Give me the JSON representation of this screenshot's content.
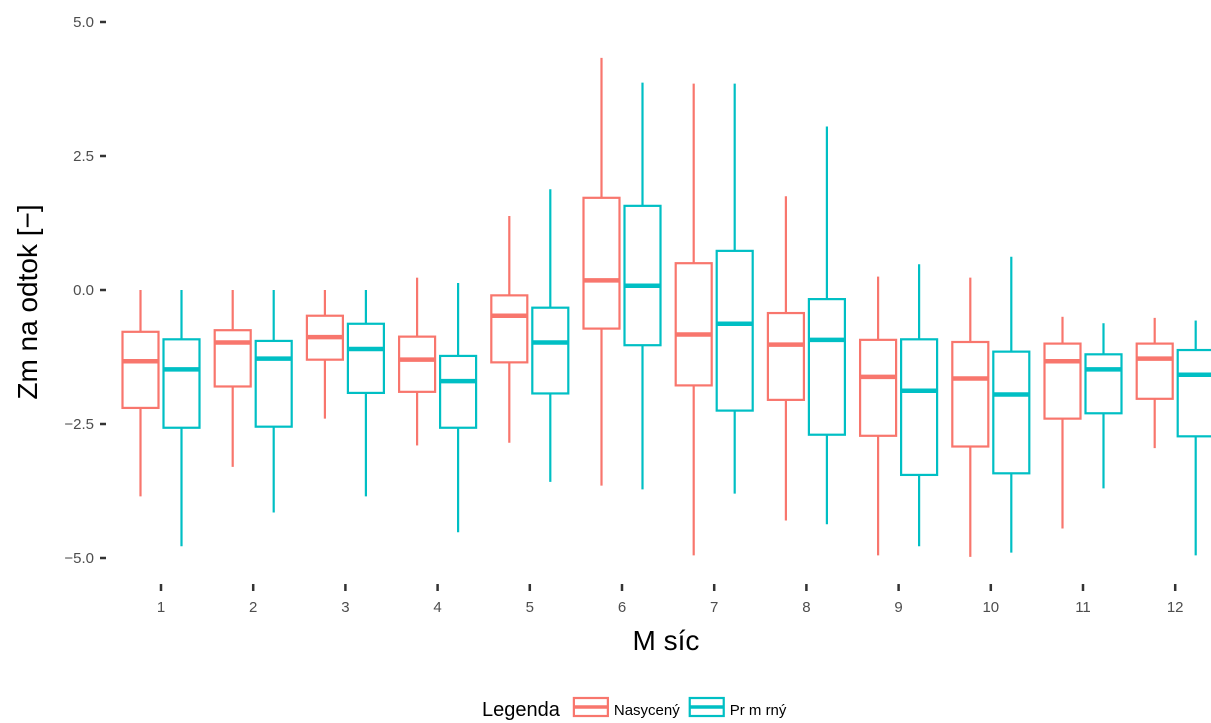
{
  "chart_data": {
    "type": "boxplot",
    "xlabel": "M síc",
    "ylabel": "Zm na odtok [−]",
    "categories": [
      "1",
      "2",
      "3",
      "4",
      "5",
      "6",
      "7",
      "8",
      "9",
      "10",
      "11",
      "12"
    ],
    "y_ticks": [
      "5.0",
      "2.5",
      "0.0",
      "−2.5",
      "−5.0"
    ],
    "ylim": [
      -5.0,
      5.0
    ],
    "grid": false,
    "legend": {
      "title": "Legenda",
      "placement": "bottom"
    },
    "series": [
      {
        "name": "Nasycený",
        "color": "#F8766D",
        "boxes": [
          {
            "min": -3.85,
            "q1": -2.2,
            "median": -1.33,
            "q3": -0.78,
            "max": 0.0
          },
          {
            "min": -3.3,
            "q1": -1.8,
            "median": -0.98,
            "q3": -0.75,
            "max": 0.0
          },
          {
            "min": -2.4,
            "q1": -1.3,
            "median": -0.88,
            "q3": -0.48,
            "max": 0.0
          },
          {
            "min": -2.9,
            "q1": -1.9,
            "median": -1.3,
            "q3": -0.87,
            "max": 0.23
          },
          {
            "min": -2.85,
            "q1": -1.35,
            "median": -0.48,
            "q3": -0.1,
            "max": 1.38
          },
          {
            "min": -3.65,
            "q1": -0.72,
            "median": 0.18,
            "q3": 1.72,
            "max": 4.33
          },
          {
            "min": -4.95,
            "q1": -1.78,
            "median": -0.83,
            "q3": 0.5,
            "max": 3.85
          },
          {
            "min": -4.3,
            "q1": -2.05,
            "median": -1.02,
            "q3": -0.43,
            "max": 1.75
          },
          {
            "min": -4.95,
            "q1": -2.72,
            "median": -1.62,
            "q3": -0.93,
            "max": 0.25
          },
          {
            "min": -4.98,
            "q1": -2.92,
            "median": -1.65,
            "q3": -0.97,
            "max": 0.23
          },
          {
            "min": -4.45,
            "q1": -2.4,
            "median": -1.33,
            "q3": -1.0,
            "max": -0.5
          },
          {
            "min": -2.95,
            "q1": -2.03,
            "median": -1.28,
            "q3": -1.0,
            "max": -0.52
          }
        ]
      },
      {
        "name": "Pr m rný",
        "color": "#00BFC4",
        "boxes": [
          {
            "min": -4.78,
            "q1": -2.57,
            "median": -1.48,
            "q3": -0.92,
            "max": 0.0
          },
          {
            "min": -4.15,
            "q1": -2.55,
            "median": -1.28,
            "q3": -0.95,
            "max": 0.0
          },
          {
            "min": -3.85,
            "q1": -1.92,
            "median": -1.1,
            "q3": -0.63,
            "max": 0.0
          },
          {
            "min": -4.52,
            "q1": -2.57,
            "median": -1.7,
            "q3": -1.23,
            "max": 0.13
          },
          {
            "min": -3.58,
            "q1": -1.93,
            "median": -0.98,
            "q3": -0.33,
            "max": 1.88
          },
          {
            "min": -3.72,
            "q1": -1.03,
            "median": 0.08,
            "q3": 1.57,
            "max": 3.87
          },
          {
            "min": -3.8,
            "q1": -2.25,
            "median": -0.63,
            "q3": 0.73,
            "max": 3.85
          },
          {
            "min": -4.37,
            "q1": -2.7,
            "median": -0.93,
            "q3": -0.17,
            "max": 3.05
          },
          {
            "min": -4.78,
            "q1": -3.45,
            "median": -1.88,
            "q3": -0.92,
            "max": 0.48
          },
          {
            "min": -4.9,
            "q1": -3.42,
            "median": -1.95,
            "q3": -1.15,
            "max": 0.62
          },
          {
            "min": -3.7,
            "q1": -2.3,
            "median": -1.48,
            "q3": -1.2,
            "max": -0.62
          },
          {
            "min": -4.95,
            "q1": -2.73,
            "median": -1.58,
            "q3": -1.12,
            "max": -0.57
          }
        ]
      }
    ]
  }
}
